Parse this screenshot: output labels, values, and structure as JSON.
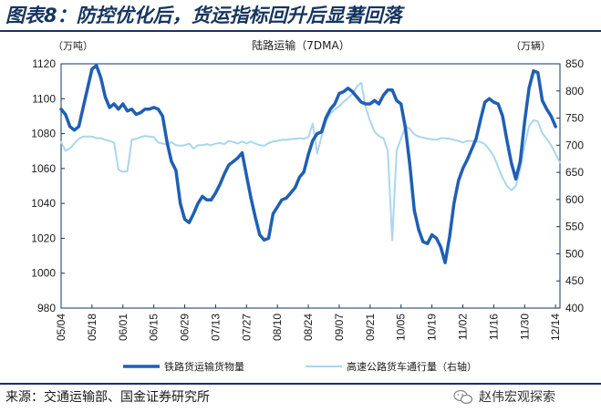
{
  "figure": {
    "title": "图表8：防控优化后，货运指标回升后显著回落",
    "source": "来源：交通运输部、国金证券研究所",
    "watermark": "赵伟宏观探索"
  },
  "chart_data": {
    "type": "line",
    "title": "陆路运输（7DMA）",
    "x": [
      "05/04",
      "05/18",
      "06/01",
      "06/15",
      "06/29",
      "07/13",
      "07/27",
      "08/10",
      "08/24",
      "09/07",
      "09/21",
      "10/05",
      "10/19",
      "11/02",
      "11/16",
      "11/30",
      "12/14"
    ],
    "x_range": [
      "05/04",
      "12/16"
    ],
    "y_left": {
      "unit": "（万吨）",
      "range": [
        980,
        1120
      ],
      "ticks": [
        980,
        1000,
        1020,
        1040,
        1060,
        1080,
        1100,
        1120
      ]
    },
    "y_right": {
      "unit": "（万辆）",
      "range": [
        400,
        850
      ],
      "ticks": [
        400,
        450,
        500,
        550,
        600,
        650,
        700,
        750,
        800,
        850
      ]
    },
    "grid": false,
    "legend": "bottom",
    "colors": {
      "rail": "#1f5fb4",
      "highway": "#a9d6ef",
      "frame": "#16355f"
    },
    "series": [
      {
        "name": "铁路货运输货物量",
        "axis": "left",
        "points": [
          [
            "05/04",
            1094
          ],
          [
            "05/06",
            1091
          ],
          [
            "05/08",
            1084
          ],
          [
            "05/10",
            1082
          ],
          [
            "05/12",
            1084
          ],
          [
            "05/14",
            1095
          ],
          [
            "05/16",
            1106
          ],
          [
            "05/18",
            1117
          ],
          [
            "05/20",
            1119
          ],
          [
            "05/22",
            1112
          ],
          [
            "05/24",
            1101
          ],
          [
            "05/26",
            1095
          ],
          [
            "05/28",
            1097
          ],
          [
            "05/30",
            1094
          ],
          [
            "06/01",
            1097
          ],
          [
            "06/03",
            1093
          ],
          [
            "06/05",
            1094
          ],
          [
            "06/07",
            1091
          ],
          [
            "06/09",
            1092
          ],
          [
            "06/11",
            1094
          ],
          [
            "06/13",
            1094
          ],
          [
            "06/15",
            1095
          ],
          [
            "06/17",
            1094
          ],
          [
            "06/19",
            1090
          ],
          [
            "06/21",
            1075
          ],
          [
            "06/23",
            1064
          ],
          [
            "06/25",
            1059
          ],
          [
            "06/27",
            1040
          ],
          [
            "06/29",
            1031
          ],
          [
            "07/01",
            1029
          ],
          [
            "07/03",
            1034
          ],
          [
            "07/05",
            1040
          ],
          [
            "07/07",
            1044
          ],
          [
            "07/09",
            1042
          ],
          [
            "07/11",
            1042
          ],
          [
            "07/13",
            1046
          ],
          [
            "07/15",
            1051
          ],
          [
            "07/17",
            1057
          ],
          [
            "07/19",
            1062
          ],
          [
            "07/21",
            1064
          ],
          [
            "07/23",
            1066
          ],
          [
            "07/25",
            1069
          ],
          [
            "07/27",
            1056
          ],
          [
            "07/29",
            1043
          ],
          [
            "07/31",
            1032
          ],
          [
            "08/02",
            1022
          ],
          [
            "08/04",
            1019
          ],
          [
            "08/06",
            1020
          ],
          [
            "08/08",
            1034
          ],
          [
            "08/10",
            1038
          ],
          [
            "08/12",
            1042
          ],
          [
            "08/14",
            1043
          ],
          [
            "08/16",
            1046
          ],
          [
            "08/18",
            1049
          ],
          [
            "08/20",
            1055
          ],
          [
            "08/22",
            1058
          ],
          [
            "08/24",
            1068
          ],
          [
            "08/26",
            1076
          ],
          [
            "08/28",
            1080
          ],
          [
            "08/30",
            1081
          ],
          [
            "09/01",
            1089
          ],
          [
            "09/03",
            1094
          ],
          [
            "09/05",
            1097
          ],
          [
            "09/07",
            1103
          ],
          [
            "09/09",
            1104
          ],
          [
            "09/11",
            1106
          ],
          [
            "09/13",
            1104
          ],
          [
            "09/15",
            1101
          ],
          [
            "09/17",
            1098
          ],
          [
            "09/19",
            1097
          ],
          [
            "09/21",
            1097
          ],
          [
            "09/23",
            1099
          ],
          [
            "09/25",
            1097
          ],
          [
            "09/27",
            1102
          ],
          [
            "09/29",
            1105
          ],
          [
            "10/01",
            1105
          ],
          [
            "10/03",
            1099
          ],
          [
            "10/05",
            1097
          ],
          [
            "10/07",
            1083
          ],
          [
            "10/09",
            1062
          ],
          [
            "10/11",
            1036
          ],
          [
            "10/13",
            1025
          ],
          [
            "10/15",
            1018
          ],
          [
            "10/17",
            1017
          ],
          [
            "10/19",
            1022
          ],
          [
            "10/21",
            1020
          ],
          [
            "10/23",
            1015
          ],
          [
            "10/25",
            1006
          ],
          [
            "10/27",
            1021
          ],
          [
            "10/29",
            1040
          ],
          [
            "10/31",
            1053
          ],
          [
            "11/02",
            1060
          ],
          [
            "11/04",
            1065
          ],
          [
            "11/06",
            1071
          ],
          [
            "11/08",
            1077
          ],
          [
            "11/10",
            1088
          ],
          [
            "11/12",
            1098
          ],
          [
            "11/14",
            1100
          ],
          [
            "11/16",
            1098
          ],
          [
            "11/18",
            1097
          ],
          [
            "11/20",
            1090
          ],
          [
            "11/22",
            1076
          ],
          [
            "11/24",
            1063
          ],
          [
            "11/26",
            1054
          ],
          [
            "11/28",
            1064
          ],
          [
            "11/30",
            1087
          ],
          [
            "12/02",
            1106
          ],
          [
            "12/04",
            1116
          ],
          [
            "12/06",
            1115
          ],
          [
            "12/08",
            1099
          ],
          [
            "12/10",
            1094
          ],
          [
            "12/12",
            1090
          ],
          [
            "12/14",
            1084
          ]
        ]
      },
      {
        "name": "高速公路货车通行量（右轴）",
        "axis": "right",
        "points": [
          [
            "05/04",
            706
          ],
          [
            "05/06",
            690
          ],
          [
            "05/08",
            694
          ],
          [
            "05/10",
            703
          ],
          [
            "05/12",
            712
          ],
          [
            "05/14",
            716
          ],
          [
            "05/16",
            716
          ],
          [
            "05/18",
            716
          ],
          [
            "05/20",
            713
          ],
          [
            "05/22",
            713
          ],
          [
            "05/24",
            710
          ],
          [
            "05/26",
            708
          ],
          [
            "05/28",
            705
          ],
          [
            "05/30",
            655
          ],
          [
            "06/01",
            651
          ],
          [
            "06/03",
            652
          ],
          [
            "06/05",
            710
          ],
          [
            "06/07",
            712
          ],
          [
            "06/09",
            715
          ],
          [
            "06/11",
            717
          ],
          [
            "06/13",
            716
          ],
          [
            "06/15",
            715
          ],
          [
            "06/17",
            705
          ],
          [
            "06/19",
            703
          ],
          [
            "06/21",
            701
          ],
          [
            "06/23",
            706
          ],
          [
            "06/25",
            700
          ],
          [
            "06/27",
            699
          ],
          [
            "06/29",
            700
          ],
          [
            "07/01",
            703
          ],
          [
            "07/03",
            694
          ],
          [
            "07/05",
            700
          ],
          [
            "07/07",
            700
          ],
          [
            "07/09",
            702
          ],
          [
            "07/11",
            700
          ],
          [
            "07/13",
            703
          ],
          [
            "07/15",
            704
          ],
          [
            "07/17",
            702
          ],
          [
            "07/19",
            708
          ],
          [
            "07/21",
            706
          ],
          [
            "07/23",
            703
          ],
          [
            "07/25",
            707
          ],
          [
            "07/27",
            703
          ],
          [
            "07/29",
            707
          ],
          [
            "07/31",
            703
          ],
          [
            "08/02",
            700
          ],
          [
            "08/04",
            699
          ],
          [
            "08/06",
            704
          ],
          [
            "08/08",
            707
          ],
          [
            "08/10",
            708
          ],
          [
            "08/12",
            710
          ],
          [
            "08/14",
            710
          ],
          [
            "08/16",
            711
          ],
          [
            "08/18",
            712
          ],
          [
            "08/20",
            713
          ],
          [
            "08/22",
            712
          ],
          [
            "08/24",
            715
          ],
          [
            "08/26",
            740
          ],
          [
            "08/28",
            685
          ],
          [
            "08/30",
            716
          ],
          [
            "09/01",
            744
          ],
          [
            "09/03",
            758
          ],
          [
            "09/05",
            766
          ],
          [
            "09/07",
            772
          ],
          [
            "09/09",
            780
          ],
          [
            "09/11",
            787
          ],
          [
            "09/13",
            795
          ],
          [
            "09/15",
            808
          ],
          [
            "09/17",
            815
          ],
          [
            "09/19",
            770
          ],
          [
            "09/21",
            745
          ],
          [
            "09/23",
            725
          ],
          [
            "09/25",
            717
          ],
          [
            "09/27",
            713
          ],
          [
            "09/29",
            690
          ],
          [
            "10/01",
            525
          ],
          [
            "10/03",
            690
          ],
          [
            "10/05",
            712
          ],
          [
            "10/07",
            735
          ],
          [
            "10/09",
            730
          ],
          [
            "10/11",
            720
          ],
          [
            "10/13",
            716
          ],
          [
            "10/15",
            714
          ],
          [
            "10/17",
            712
          ],
          [
            "10/19",
            711
          ],
          [
            "10/21",
            710
          ],
          [
            "10/23",
            713
          ],
          [
            "10/25",
            713
          ],
          [
            "10/27",
            712
          ],
          [
            "10/29",
            710
          ],
          [
            "10/31",
            708
          ],
          [
            "11/02",
            705
          ],
          [
            "11/04",
            708
          ],
          [
            "11/06",
            708
          ],
          [
            "11/08",
            707
          ],
          [
            "11/10",
            706
          ],
          [
            "11/12",
            702
          ],
          [
            "11/14",
            692
          ],
          [
            "11/16",
            680
          ],
          [
            "11/18",
            660
          ],
          [
            "11/20",
            640
          ],
          [
            "11/22",
            625
          ],
          [
            "11/24",
            617
          ],
          [
            "11/26",
            625
          ],
          [
            "11/28",
            655
          ],
          [
            "11/30",
            700
          ],
          [
            "12/02",
            735
          ],
          [
            "12/04",
            746
          ],
          [
            "12/06",
            744
          ],
          [
            "12/08",
            722
          ],
          [
            "12/10",
            712
          ],
          [
            "12/12",
            700
          ],
          [
            "12/14",
            684
          ],
          [
            "12/16",
            668
          ]
        ]
      }
    ]
  }
}
